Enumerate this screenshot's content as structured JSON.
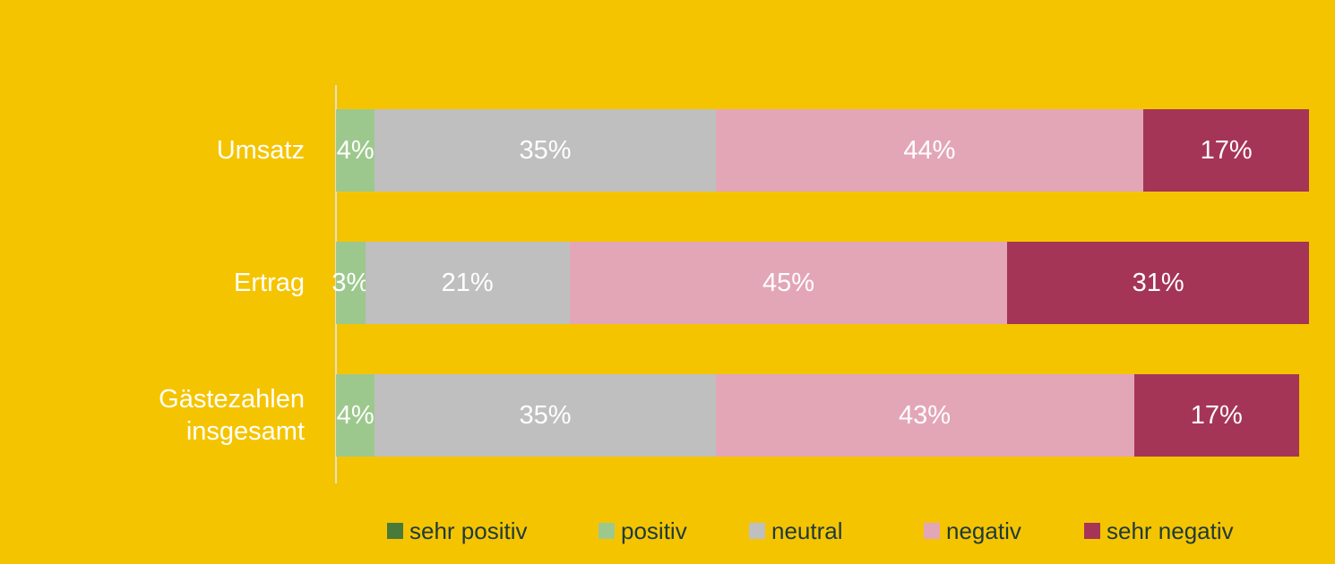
{
  "chart_data": {
    "type": "stacked-bar-horizontal",
    "categories": [
      "Umsatz",
      "Ertrag",
      "Gästezahlen insgesamt"
    ],
    "xlim": [
      0,
      100
    ],
    "legend": "bottom",
    "series": [
      {
        "name": "sehr positiv",
        "color": "#4a7a3a",
        "values": [
          0,
          0,
          0
        ]
      },
      {
        "name": "positiv",
        "color": "#9dc88d",
        "values": [
          4,
          3,
          4
        ],
        "value_labels": [
          "4%",
          "3%",
          "4%"
        ]
      },
      {
        "name": "neutral",
        "color": "#bfbfbf",
        "values": [
          35,
          21,
          35
        ],
        "value_labels": [
          "35%",
          "21%",
          "35%"
        ]
      },
      {
        "name": "negativ",
        "color": "#e3a6b7",
        "values": [
          44,
          45,
          43
        ],
        "value_labels": [
          "44%",
          "45%",
          "43%"
        ]
      },
      {
        "name": "sehr negativ",
        "color": "#a53557",
        "values": [
          17,
          31,
          17
        ],
        "value_labels": [
          "17%",
          "31%",
          "17%"
        ]
      }
    ]
  }
}
